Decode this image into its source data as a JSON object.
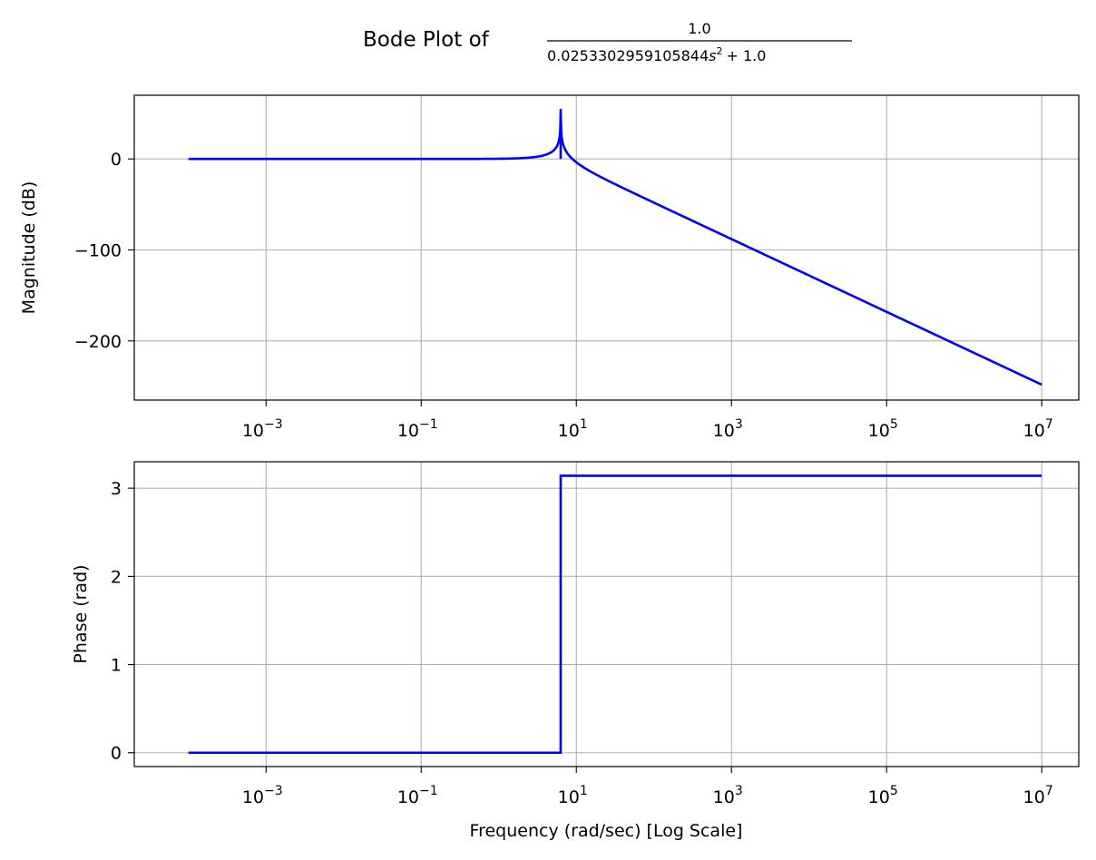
{
  "title": {
    "prefix": "Bode Plot of",
    "numerator": "1.0",
    "denominator_coeff": "0.0253302959105844",
    "denominator_var": "s",
    "denominator_exp": "2",
    "denominator_suffix": "+ 1.0"
  },
  "line_color": "#0000ff",
  "chart_data": [
    {
      "type": "line",
      "name": "magnitude",
      "title": "Bode Plot of 1.0 / (0.0253302959105844 s^2 + 1.0)",
      "xlabel": "",
      "ylabel": "Magnitude (dB)",
      "xscale": "log",
      "grid": true,
      "xlim": [
        2e-05,
        30000000
      ],
      "ylim": [
        -265,
        70
      ],
      "x_ticks": [
        {
          "value": 0.001,
          "base": "10",
          "exp": "−3"
        },
        {
          "value": 0.1,
          "base": "10",
          "exp": "−1"
        },
        {
          "value": 10,
          "base": "10",
          "exp": "1"
        },
        {
          "value": 1000,
          "base": "10",
          "exp": "3"
        },
        {
          "value": 100000,
          "base": "10",
          "exp": "5"
        },
        {
          "value": 10000000,
          "base": "10",
          "exp": "7"
        }
      ],
      "y_ticks": [
        {
          "value": 0,
          "label": "0"
        },
        {
          "value": -100,
          "label": "−100"
        },
        {
          "value": -200,
          "label": "−200"
        }
      ],
      "series": [
        {
          "name": "magnitude",
          "x_range": [
            0.0001,
            10000000
          ],
          "peak": {
            "x": 6.283,
            "y": 55
          }
        }
      ]
    },
    {
      "type": "line",
      "name": "phase",
      "xlabel": "Frequency (rad/sec) [Log Scale]",
      "ylabel": "Phase (rad)",
      "xscale": "log",
      "grid": true,
      "xlim": [
        2e-05,
        30000000
      ],
      "ylim": [
        -0.157,
        3.3
      ],
      "x_ticks": [
        {
          "value": 0.001,
          "base": "10",
          "exp": "−3"
        },
        {
          "value": 0.1,
          "base": "10",
          "exp": "−1"
        },
        {
          "value": 10,
          "base": "10",
          "exp": "1"
        },
        {
          "value": 1000,
          "base": "10",
          "exp": "3"
        },
        {
          "value": 100000,
          "base": "10",
          "exp": "5"
        },
        {
          "value": 10000000,
          "base": "10",
          "exp": "7"
        }
      ],
      "y_ticks": [
        {
          "value": 0,
          "label": "0"
        },
        {
          "value": 1,
          "label": "1"
        },
        {
          "value": 2,
          "label": "2"
        },
        {
          "value": 3,
          "label": "3"
        }
      ],
      "series": [
        {
          "name": "phase",
          "x": [
            0.0001,
            6.283,
            6.283,
            10000000
          ],
          "y": [
            0,
            0,
            3.14159,
            3.14159
          ]
        }
      ]
    }
  ]
}
